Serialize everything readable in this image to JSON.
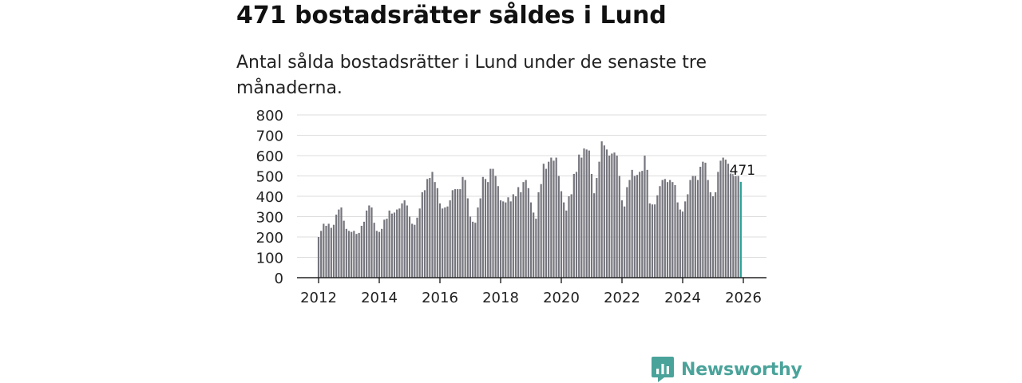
{
  "title": "471 bostadsrätter såldes i Lund",
  "subtitle": "Antal sålda bostadsrätter i Lund under de senaste tre månaderna.",
  "logo": {
    "name": "Newsworthy"
  },
  "colors": {
    "bar": "#75757d",
    "highlight": "#2ca197",
    "grid": "#dddddd",
    "axis": "#222222",
    "brand": "#4aa39a"
  },
  "chart_data": {
    "type": "bar",
    "title": "471 bostadsrätter såldes i Lund",
    "subtitle": "Antal sålda bostadsrätter i Lund under de senaste tre månaderna.",
    "xlabel": "",
    "ylabel": "",
    "ylim": [
      0,
      800
    ],
    "yticks": [
      0,
      100,
      200,
      300,
      400,
      500,
      600,
      700,
      800
    ],
    "xticks": [
      "2012",
      "2014",
      "2016",
      "2018",
      "2020",
      "2022",
      "2024",
      "2026"
    ],
    "grid": true,
    "start": "2012-01",
    "end": "2026-01",
    "highlight_label": "471",
    "values": [
      200,
      230,
      265,
      255,
      265,
      245,
      260,
      310,
      335,
      345,
      280,
      240,
      230,
      225,
      230,
      215,
      220,
      255,
      275,
      330,
      355,
      345,
      270,
      230,
      225,
      240,
      285,
      290,
      330,
      315,
      320,
      335,
      340,
      365,
      380,
      355,
      300,
      265,
      260,
      295,
      340,
      420,
      430,
      485,
      490,
      520,
      470,
      440,
      365,
      340,
      345,
      350,
      380,
      430,
      435,
      435,
      435,
      495,
      480,
      390,
      300,
      275,
      270,
      345,
      390,
      495,
      485,
      470,
      535,
      535,
      500,
      450,
      380,
      375,
      370,
      395,
      375,
      410,
      400,
      445,
      420,
      470,
      480,
      440,
      370,
      320,
      290,
      420,
      460,
      560,
      535,
      570,
      590,
      575,
      590,
      500,
      425,
      370,
      330,
      400,
      410,
      510,
      520,
      605,
      590,
      635,
      630,
      625,
      510,
      415,
      490,
      570,
      670,
      650,
      630,
      600,
      610,
      615,
      600,
      500,
      380,
      350,
      445,
      480,
      530,
      500,
      505,
      520,
      525,
      600,
      530,
      365,
      360,
      360,
      405,
      450,
      480,
      485,
      470,
      480,
      470,
      455,
      370,
      335,
      325,
      375,
      410,
      480,
      500,
      500,
      480,
      545,
      570,
      565,
      480,
      420,
      400,
      420,
      520,
      575,
      590,
      580,
      560,
      520,
      510,
      520,
      500,
      471
    ]
  }
}
